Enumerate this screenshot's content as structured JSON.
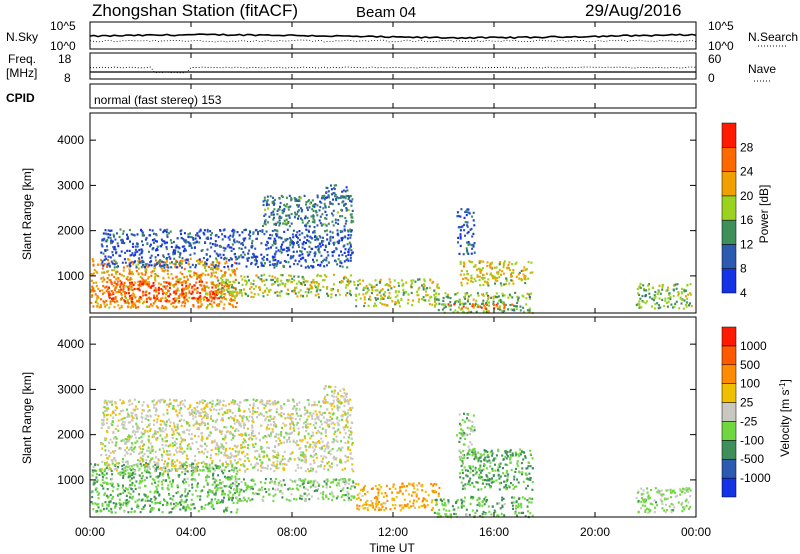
{
  "header": {
    "station": "Zhongshan Station (fitACF)",
    "beam": "Beam 04",
    "date": "29/Aug/2016"
  },
  "nsky_panel": {
    "left_label": "N.Sky",
    "left_ticks": [
      "10^5",
      "10^0"
    ],
    "right_ticks": [
      "10^5",
      "10^0"
    ],
    "right_label": "N.Search"
  },
  "freq_panel": {
    "left_label_line1": "Freq.",
    "left_label_line2": "[MHz]",
    "left_ticks": [
      "18",
      "8"
    ],
    "right_ticks": [
      "60",
      "0"
    ],
    "right_label": "Nave"
  },
  "cpid": {
    "label": "CPID",
    "value": "normal (fast stereo) 153"
  },
  "power_panel": {
    "ylabel": "Slant Range [km]",
    "yticks": [
      "4000",
      "3000",
      "2000",
      "1000"
    ],
    "colorbar_label": "Power [dB]",
    "colorbar_ticks": [
      "28",
      "24",
      "20",
      "16",
      "12",
      "8",
      "4"
    ],
    "colors": [
      "#1433e6",
      "#2b5ab0",
      "#3f8f5a",
      "#9ad21e",
      "#f0a000",
      "#ff6a00",
      "#ff1a00"
    ]
  },
  "velocity_panel": {
    "ylabel": "Slant Range [km]",
    "yticks": [
      "4000",
      "3000",
      "2000",
      "1000"
    ],
    "colorbar_label": "Velocity [m s",
    "colorbar_unit_sup": "-1",
    "colorbar_unit_end": "]",
    "colorbar_ticks": [
      "1000",
      "500",
      "100",
      "25",
      "-25",
      "-100",
      "-500",
      "-1000"
    ],
    "colors": [
      "#1433e6",
      "#2b5ab0",
      "#3f8f5a",
      "#6fd840",
      "#c8c8c0",
      "#f0c000",
      "#ff8c00",
      "#ff5a00",
      "#ff1a00"
    ]
  },
  "xaxis": {
    "ticks": [
      "00:00",
      "04:00",
      "08:00",
      "12:00",
      "16:00",
      "20:00",
      "00:00"
    ],
    "label": "Time UT"
  },
  "chart_data": {
    "type": "heatmap",
    "title": "Zhongshan Station (fitACF)",
    "xlabel": "Time UT",
    "ylabel": "Slant Range [km]",
    "xlim": [
      0,
      24
    ],
    "ylim": [
      180,
      4600
    ],
    "power_scale": [
      0,
      32
    ],
    "velocity_scale": [
      -1000,
      1000
    ],
    "power_regions": [
      {
        "t0": 0.0,
        "t1": 5.8,
        "r0": 300,
        "r1": 1400,
        "value": 22
      },
      {
        "t0": 0.6,
        "t1": 5.2,
        "r0": 450,
        "r1": 900,
        "value": 28
      },
      {
        "t0": 5.0,
        "t1": 10.5,
        "r0": 550,
        "r1": 1050,
        "value": 16
      },
      {
        "t0": 0.4,
        "t1": 10.4,
        "r0": 1200,
        "r1": 2050,
        "value": 6
      },
      {
        "t0": 6.8,
        "t1": 10.4,
        "r0": 2100,
        "r1": 2800,
        "value": 9
      },
      {
        "t0": 9.2,
        "t1": 10.2,
        "r0": 2700,
        "r1": 3050,
        "value": 8
      },
      {
        "t0": 10.5,
        "t1": 13.8,
        "r0": 350,
        "r1": 950,
        "value": 16
      },
      {
        "t0": 13.6,
        "t1": 17.5,
        "r0": 200,
        "r1": 650,
        "value": 14
      },
      {
        "t0": 14.1,
        "t1": 16.7,
        "r0": 300,
        "r1": 400,
        "value": 27
      },
      {
        "t0": 14.6,
        "t1": 17.5,
        "r0": 800,
        "r1": 1350,
        "value": 18
      },
      {
        "t0": 14.5,
        "t1": 15.2,
        "r0": 1500,
        "r1": 2500,
        "value": 6
      },
      {
        "t0": 21.6,
        "t1": 23.8,
        "r0": 300,
        "r1": 850,
        "value": 14
      }
    ],
    "velocity_regions": [
      {
        "t0": 0.0,
        "t1": 5.8,
        "r0": 300,
        "r1": 1400,
        "value": -300
      },
      {
        "t0": 5.0,
        "t1": 10.5,
        "r0": 550,
        "r1": 1050,
        "value": -200
      },
      {
        "t0": 0.4,
        "t1": 10.4,
        "r0": 1200,
        "r1": 2800,
        "value": 0
      },
      {
        "t0": 9.2,
        "t1": 10.2,
        "r0": 2700,
        "r1": 3100,
        "value": 0
      },
      {
        "t0": 10.5,
        "t1": 13.8,
        "r0": 350,
        "r1": 950,
        "value": 300
      },
      {
        "t0": 13.6,
        "t1": 17.5,
        "r0": 200,
        "r1": 650,
        "value": -300
      },
      {
        "t0": 14.6,
        "t1": 17.5,
        "r0": 800,
        "r1": 1700,
        "value": -350
      },
      {
        "t0": 14.5,
        "t1": 15.2,
        "r0": 1500,
        "r1": 2500,
        "value": -200
      },
      {
        "t0": 21.6,
        "t1": 23.8,
        "r0": 300,
        "r1": 850,
        "value": -150
      }
    ]
  }
}
